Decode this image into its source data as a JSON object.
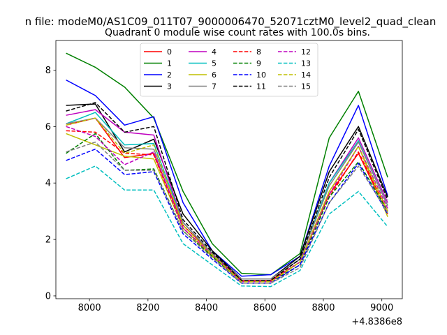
{
  "chart_data": {
    "type": "line",
    "suptitle": "n file: modeM0/AS1C09_011T07_9000006470_52071cztM0_level2_quad_clean",
    "title": "Quadrant 0 module wise count rates with 100.0s bins.",
    "xlabel": "",
    "ylabel": "",
    "offset_text": "+4.8386e8",
    "x": [
      7920,
      8020,
      8120,
      8220,
      8320,
      8420,
      8520,
      8620,
      8720,
      8820,
      8920,
      9020
    ],
    "xlim": [
      7885,
      9070
    ],
    "ylim": [
      -0.1,
      9.05
    ],
    "xticks": [
      8000,
      8200,
      8400,
      8600,
      8800,
      9000
    ],
    "yticks": [
      0,
      2,
      4,
      6,
      8
    ],
    "legend": {
      "position": "top-center",
      "columns": 4
    },
    "series": [
      {
        "name": "0",
        "color": "#ff0000",
        "dash": false,
        "values": [
          6.05,
          6.3,
          4.9,
          5.05,
          2.5,
          1.5,
          0.55,
          0.55,
          1.2,
          3.6,
          5.05,
          2.9
        ]
      },
      {
        "name": "1",
        "color": "#008000",
        "dash": false,
        "values": [
          8.6,
          8.1,
          7.4,
          6.3,
          3.7,
          1.85,
          0.8,
          0.75,
          1.5,
          5.6,
          7.25,
          4.2
        ]
      },
      {
        "name": "2",
        "color": "#0000ff",
        "dash": false,
        "values": [
          7.65,
          7.1,
          6.05,
          6.35,
          3.3,
          1.6,
          0.7,
          0.75,
          1.4,
          4.6,
          6.75,
          3.55
        ]
      },
      {
        "name": "3",
        "color": "#000000",
        "dash": false,
        "values": [
          6.75,
          6.8,
          5.1,
          5.55,
          2.9,
          1.6,
          0.6,
          0.6,
          1.4,
          4.4,
          6.0,
          3.5
        ]
      },
      {
        "name": "4",
        "color": "#bf00bf",
        "dash": false,
        "values": [
          6.4,
          6.6,
          5.8,
          5.7,
          2.6,
          1.5,
          0.6,
          0.6,
          1.3,
          4.0,
          5.6,
          3.3
        ]
      },
      {
        "name": "5",
        "color": "#00bfbf",
        "dash": false,
        "values": [
          6.1,
          6.5,
          5.35,
          5.4,
          2.6,
          1.5,
          0.6,
          0.6,
          1.3,
          4.0,
          5.5,
          3.2
        ]
      },
      {
        "name": "6",
        "color": "#bfbf00",
        "dash": false,
        "values": [
          5.75,
          5.35,
          4.95,
          4.85,
          2.4,
          1.4,
          0.5,
          0.5,
          1.2,
          3.7,
          5.3,
          2.8
        ]
      },
      {
        "name": "7",
        "color": "#808080",
        "dash": false,
        "values": [
          6.1,
          6.3,
          5.25,
          5.2,
          2.6,
          1.5,
          0.6,
          0.6,
          1.3,
          3.9,
          5.45,
          3.2
        ]
      },
      {
        "name": "8",
        "color": "#ff0000",
        "dash": true,
        "values": [
          5.85,
          5.8,
          5.05,
          5.0,
          2.4,
          1.45,
          0.5,
          0.5,
          1.2,
          3.5,
          5.1,
          3.0
        ]
      },
      {
        "name": "9",
        "color": "#008000",
        "dash": true,
        "values": [
          5.05,
          5.75,
          4.45,
          4.5,
          2.3,
          1.4,
          0.5,
          0.5,
          1.1,
          3.5,
          4.75,
          3.0
        ]
      },
      {
        "name": "10",
        "color": "#0000ff",
        "dash": true,
        "values": [
          4.8,
          5.2,
          4.3,
          4.4,
          2.2,
          1.3,
          0.45,
          0.45,
          1.1,
          3.3,
          4.7,
          2.9
        ]
      },
      {
        "name": "11",
        "color": "#000000",
        "dash": true,
        "values": [
          6.55,
          6.85,
          5.8,
          6.0,
          2.7,
          1.55,
          0.55,
          0.55,
          1.3,
          4.2,
          5.9,
          3.4
        ]
      },
      {
        "name": "12",
        "color": "#bf00bf",
        "dash": true,
        "values": [
          6.0,
          5.65,
          4.65,
          5.1,
          2.4,
          1.45,
          0.5,
          0.5,
          1.2,
          3.6,
          5.3,
          3.1
        ]
      },
      {
        "name": "13",
        "color": "#00bfbf",
        "dash": true,
        "values": [
          4.15,
          4.6,
          3.75,
          3.75,
          1.85,
          1.1,
          0.35,
          0.33,
          0.9,
          2.9,
          3.7,
          2.45
        ]
      },
      {
        "name": "14",
        "color": "#bfbf00",
        "dash": true,
        "values": [
          6.05,
          6.3,
          5.05,
          5.35,
          2.5,
          1.45,
          0.5,
          0.5,
          1.2,
          3.7,
          5.3,
          3.0
        ]
      },
      {
        "name": "15",
        "color": "#808080",
        "dash": true,
        "values": [
          5.1,
          5.45,
          4.45,
          4.45,
          2.3,
          1.35,
          0.45,
          0.45,
          1.0,
          3.3,
          4.6,
          2.95
        ]
      }
    ]
  }
}
